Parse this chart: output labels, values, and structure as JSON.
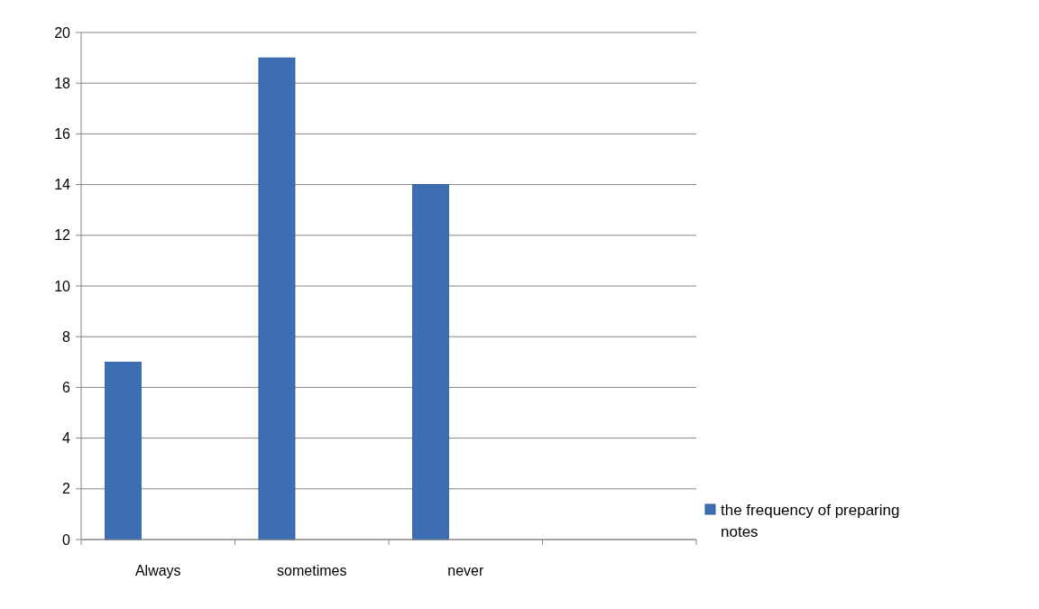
{
  "chart_data": {
    "type": "bar",
    "categories": [
      "Always",
      "sometimes",
      "never",
      null
    ],
    "series": [
      {
        "name": "the frequency of preparing notes",
        "color": "#3d6eb4",
        "values": [
          7,
          19,
          14,
          null
        ]
      }
    ],
    "ylim": [
      0,
      20
    ],
    "yticks": [
      0,
      2,
      4,
      6,
      8,
      10,
      12,
      14,
      16,
      18,
      20
    ],
    "grid": "y",
    "legend": "right"
  }
}
